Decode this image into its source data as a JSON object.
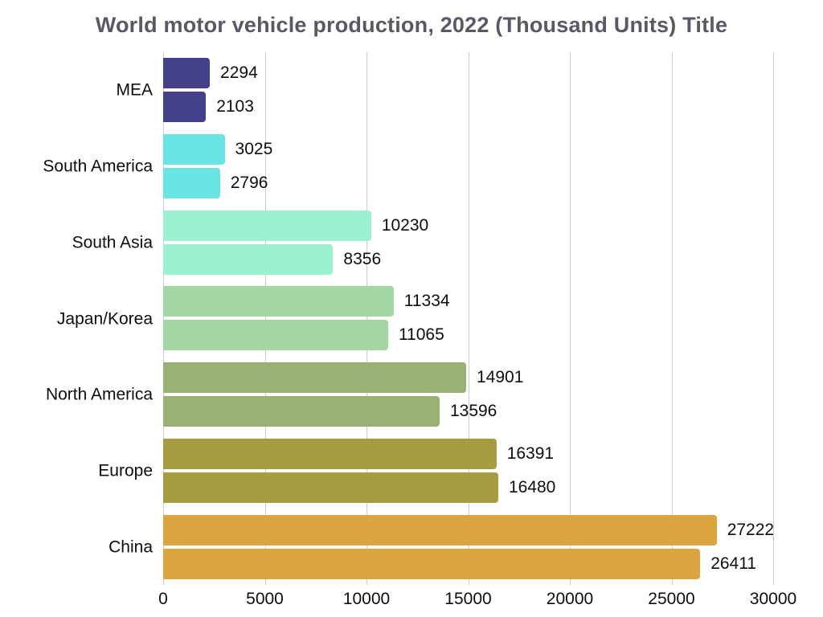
{
  "chart_data": {
    "type": "bar",
    "orientation": "horizontal",
    "title": "World motor vehicle production, 2022 (Thousand Units) Title",
    "category_order": "top-to-bottom",
    "categories": [
      "MEA",
      "South America",
      "South Asia",
      "Japan/Korea",
      "North America",
      "Europe",
      "China"
    ],
    "series": [
      {
        "name": "upper-bar",
        "values": [
          2294,
          3025,
          10230,
          11334,
          14901,
          16391,
          27222
        ]
      },
      {
        "name": "lower-bar",
        "values": [
          2103,
          2796,
          8356,
          11065,
          13596,
          16480,
          26411
        ]
      }
    ],
    "bar_colors": [
      "#44418a",
      "#6ae3e5",
      "#9af0cf",
      "#a3d6a2",
      "#99b173",
      "#a69c42",
      "#dba43e"
    ],
    "xlim": [
      0,
      30000
    ],
    "x_ticks": [
      0,
      5000,
      10000,
      15000,
      20000,
      25000,
      30000
    ],
    "x_tick_labels": [
      "0",
      "5000",
      "10000",
      "15000",
      "20000",
      "25000",
      "30000"
    ],
    "xlabel": "",
    "ylabel": "",
    "grid": "vertical",
    "legend": "none",
    "colors": {
      "title_text": "#5a5866",
      "label_text": "#0d0d0d",
      "gridline": "#cccccc",
      "background": "#ffffff"
    }
  }
}
